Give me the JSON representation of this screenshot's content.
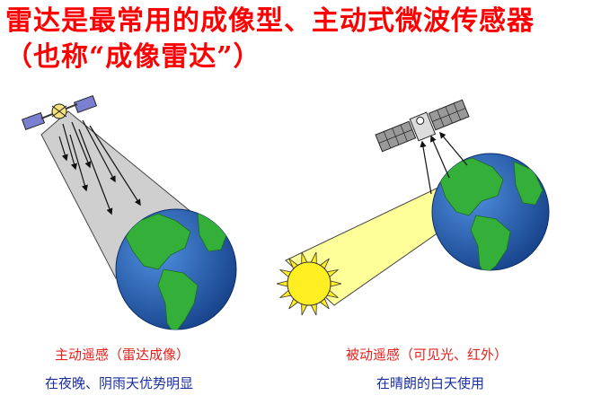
{
  "title": "雷达是最常用的成像型、主动式微波传感器（也称“成像雷达”）",
  "left_panel": {
    "caption_main": "主动遥感（雷达成像）",
    "caption_sub": "在夜晚、阴雨天优势明显"
  },
  "right_panel": {
    "caption_main": "被动遥感（可见光、红外）",
    "caption_sub": "在晴朗的白天使用"
  },
  "colors": {
    "title": "#ff0000",
    "caption_main": "#e8201c",
    "caption_sub": "#1a2ea0",
    "ocean": "#1f5fb4",
    "land": "#2fa336",
    "radar_beam": "#cccccc",
    "sun_beam": "#ffff99",
    "sun": "#ffee22"
  }
}
